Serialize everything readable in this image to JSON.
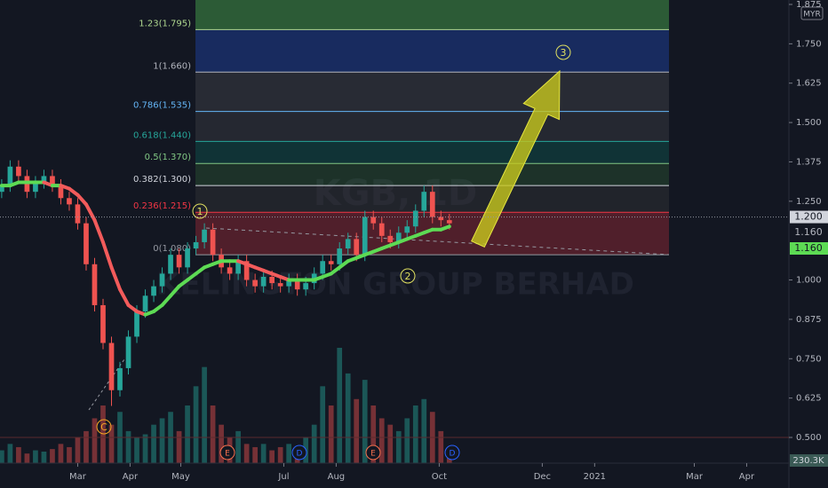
{
  "chart_data": {
    "type": "candlestick",
    "symbol": "KGB, 1D",
    "company": "KELINGTON GROUP BERHAD",
    "currency": "MYR",
    "x": [
      15,
      20,
      25,
      30,
      35,
      40,
      45,
      50,
      55,
      60,
      65,
      70,
      75,
      80,
      85,
      90,
      95,
      100,
      105,
      110,
      115,
      120,
      125,
      130,
      135,
      140,
      145,
      150,
      155,
      160,
      165,
      170,
      175,
      180,
      185,
      190,
      195,
      200,
      205,
      210,
      215,
      220,
      225,
      230,
      235,
      240,
      245,
      250,
      255,
      260,
      265,
      270,
      275,
      280
    ],
    "open": [
      1.28,
      1.3,
      1.36,
      1.33,
      1.28,
      1.31,
      1.33,
      1.3,
      1.26,
      1.24,
      1.18,
      1.05,
      0.92,
      0.8,
      0.65,
      0.72,
      0.82,
      0.9,
      0.95,
      0.98,
      1.02,
      1.08,
      1.04,
      1.1,
      1.12,
      1.16,
      1.08,
      1.04,
      1.02,
      1.06,
      1.0,
      0.98,
      1.01,
      0.99,
      0.98,
      1.0,
      0.97,
      0.99,
      1.02,
      1.06,
      1.05,
      1.1,
      1.13,
      1.08,
      1.2,
      1.18,
      1.14,
      1.12,
      1.15,
      1.17,
      1.22,
      1.28,
      1.2,
      1.19
    ],
    "high": [
      1.32,
      1.38,
      1.38,
      1.35,
      1.33,
      1.35,
      1.35,
      1.32,
      1.28,
      1.26,
      1.2,
      1.07,
      0.94,
      0.82,
      0.74,
      0.84,
      0.92,
      0.97,
      1.0,
      1.04,
      1.1,
      1.1,
      1.12,
      1.14,
      1.18,
      1.18,
      1.1,
      1.06,
      1.08,
      1.08,
      1.02,
      1.03,
      1.03,
      1.01,
      1.02,
      1.02,
      1.01,
      1.04,
      1.08,
      1.08,
      1.12,
      1.15,
      1.15,
      1.22,
      1.22,
      1.2,
      1.16,
      1.17,
      1.19,
      1.24,
      1.3,
      1.3,
      1.22,
      1.21
    ],
    "low": [
      1.26,
      1.28,
      1.31,
      1.26,
      1.26,
      1.29,
      1.28,
      1.24,
      1.22,
      1.16,
      1.03,
      0.9,
      0.78,
      0.6,
      0.63,
      0.7,
      0.8,
      0.88,
      0.93,
      0.96,
      1.0,
      1.02,
      1.02,
      1.08,
      1.1,
      1.06,
      1.02,
      1.0,
      1.0,
      0.98,
      0.96,
      0.96,
      0.97,
      0.96,
      0.96,
      0.95,
      0.95,
      0.97,
      1.0,
      1.03,
      1.03,
      1.08,
      1.06,
      1.06,
      1.16,
      1.12,
      1.1,
      1.1,
      1.13,
      1.15,
      1.2,
      1.18,
      1.17,
      1.16
    ],
    "close": [
      1.3,
      1.36,
      1.33,
      1.28,
      1.31,
      1.33,
      1.3,
      1.26,
      1.24,
      1.18,
      1.05,
      0.92,
      0.8,
      0.65,
      0.72,
      0.82,
      0.9,
      0.95,
      0.98,
      1.02,
      1.08,
      1.04,
      1.1,
      1.12,
      1.16,
      1.08,
      1.04,
      1.02,
      1.06,
      1.0,
      0.98,
      1.01,
      0.99,
      0.98,
      1.0,
      0.97,
      0.99,
      1.02,
      1.06,
      1.05,
      1.1,
      1.13,
      1.08,
      1.2,
      1.18,
      1.14,
      1.12,
      1.15,
      1.17,
      1.22,
      1.28,
      1.2,
      1.19,
      1.18
    ],
    "volume": [
      200,
      300,
      250,
      150,
      200,
      180,
      220,
      300,
      250,
      400,
      500,
      700,
      900,
      600,
      800,
      500,
      400,
      450,
      600,
      700,
      800,
      500,
      900,
      1200,
      1500,
      900,
      600,
      400,
      500,
      300,
      250,
      300,
      200,
      250,
      300,
      200,
      400,
      600,
      1200,
      900,
      1800,
      1400,
      1000,
      1300,
      900,
      700,
      600,
      500,
      700,
      900,
      1000,
      800,
      500,
      230.3
    ],
    "volume_label": "230.3K",
    "moving_average": {
      "values": [
        1.3,
        1.3,
        1.31,
        1.31,
        1.31,
        1.31,
        1.3,
        1.3,
        1.29,
        1.27,
        1.24,
        1.19,
        1.12,
        1.04,
        0.97,
        0.92,
        0.9,
        0.89,
        0.9,
        0.92,
        0.95,
        0.98,
        1.0,
        1.02,
        1.04,
        1.05,
        1.06,
        1.06,
        1.06,
        1.05,
        1.04,
        1.03,
        1.02,
        1.01,
        1.0,
        1.0,
        1.0,
        1.0,
        1.01,
        1.02,
        1.04,
        1.06,
        1.07,
        1.08,
        1.09,
        1.1,
        1.11,
        1.12,
        1.13,
        1.14,
        1.15,
        1.16,
        1.16,
        1.17
      ],
      "up_color": "#5ddb54",
      "down_color": "#f35b5b"
    },
    "up_color": "#26a69a",
    "down_color": "#ef5350",
    "xlim": [
      14,
      481
    ],
    "xticks": [
      {
        "value": 60,
        "label": "Mar"
      },
      {
        "value": 91,
        "label": "Apr"
      },
      {
        "value": 121,
        "label": "May"
      },
      {
        "value": 182,
        "label": "Jul"
      },
      {
        "value": 213,
        "label": "Aug"
      },
      {
        "value": 274,
        "label": "Oct"
      },
      {
        "value": 335,
        "label": "Dec"
      },
      {
        "value": 366,
        "label": "2021"
      },
      {
        "value": 425,
        "label": "Mar"
      },
      {
        "value": 456,
        "label": "Apr"
      }
    ],
    "ylim": [
      0.5,
      1.875
    ],
    "yticks": [
      {
        "value": 0.5,
        "label": "0.500"
      },
      {
        "value": 0.625,
        "label": "0.625"
      },
      {
        "value": 0.75,
        "label": "0.750"
      },
      {
        "value": 0.875,
        "label": "0.875"
      },
      {
        "value": 1,
        "label": "1.000"
      },
      {
        "value": 1.25,
        "label": "1.250"
      },
      {
        "value": 1.375,
        "label": "1.375"
      },
      {
        "value": 1.5,
        "label": "1.500"
      },
      {
        "value": 1.625,
        "label": "1.625"
      },
      {
        "value": 1.75,
        "label": "1.750"
      },
      {
        "value": 1.875,
        "label": "1.875"
      }
    ],
    "fib_levels": [
      {
        "value": 1.08,
        "label": "0(1.080)",
        "color": "#9598a1",
        "band": "rgba(242,54,69,0.28)"
      },
      {
        "value": 1.215,
        "label": "0.236(1.215)",
        "color": "#f23645",
        "band": "rgba(60,60,60,0.35)"
      },
      {
        "value": 1.3,
        "label": "0.382(1.300)",
        "color": "#d1d4dc",
        "band": "rgba(76,175,80,0.18)"
      },
      {
        "value": 1.37,
        "label": "0.5(1.370)",
        "color": "#81c784",
        "band": "rgba(8,153,129,0.22)"
      },
      {
        "value": 1.44,
        "label": "0.618(1.440)",
        "color": "#26a69a",
        "band": "rgba(120,120,120,0.18)"
      },
      {
        "value": 1.535,
        "label": "0.786(1.535)",
        "color": "#64b5f6",
        "band": "rgba(120,120,120,0.22)"
      },
      {
        "value": 1.66,
        "label": "1(1.660)",
        "color": "#b2b5be",
        "band": "rgba(41,98,255,0.28)"
      },
      {
        "value": 1.795,
        "label": "1.23(1.795)",
        "color": "#b0d990",
        "band": "rgba(76,175,80,0.45)"
      }
    ],
    "price_tags": [
      {
        "value": 1.2,
        "label": "1.200"
      },
      {
        "value": 1.16,
        "label": "1.160"
      }
    ],
    "wave_labels": [
      "1",
      "2",
      "3",
      "C"
    ],
    "events": [
      "E",
      "D",
      "E",
      "D"
    ]
  }
}
